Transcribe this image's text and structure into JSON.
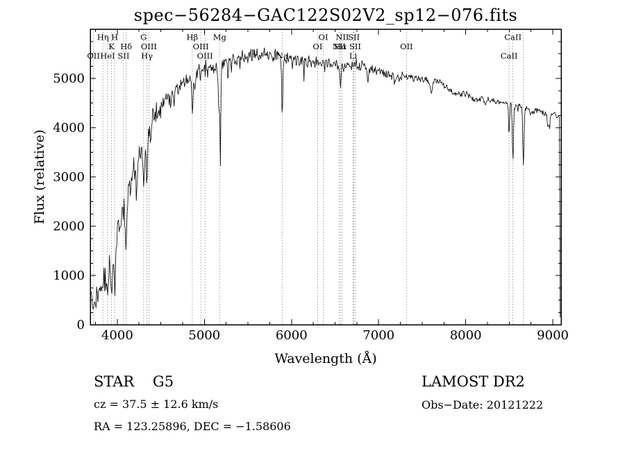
{
  "annotations": {
    "class_label": "STAR    G5",
    "survey": "LAMOST DR2",
    "cz": "cz = 37.5 ± 12.6 km/s",
    "obs_date": "Obs−Date: 20121222",
    "coords": "RA = 123.25896, DEC = −1.58606"
  },
  "chart_data": {
    "type": "line",
    "title": "spec−56284−GAC122S02V2_sp12−076.fits",
    "xlabel": "Wavelength (Å)",
    "ylabel": "Flux (relative)",
    "xlim": [
      3690,
      9095
    ],
    "ylim": [
      0,
      6000
    ],
    "xticks": [
      4000,
      5000,
      6000,
      7000,
      8000,
      9000
    ],
    "yticks": [
      0,
      1000,
      2000,
      3000,
      4000,
      5000
    ],
    "minor_step_x": 250,
    "minor_step_y": 250,
    "grid": false,
    "legend": "none",
    "line_color": "#000000",
    "marker_line_color": "#8a8a8a",
    "wl_start": 3700,
    "wl_end": 9085,
    "continuum": [
      [
        3700,
        520
      ],
      [
        3740,
        480
      ],
      [
        3780,
        700
      ],
      [
        3820,
        850
      ],
      [
        3860,
        950
      ],
      [
        3900,
        1150
      ],
      [
        3940,
        1350
      ],
      [
        3980,
        1600
      ],
      [
        4020,
        1900
      ],
      [
        4060,
        2150
      ],
      [
        4100,
        2500
      ],
      [
        4150,
        2900
      ],
      [
        4200,
        3200
      ],
      [
        4250,
        3450
      ],
      [
        4300,
        3700
      ],
      [
        4350,
        3950
      ],
      [
        4400,
        4150
      ],
      [
        4450,
        4300
      ],
      [
        4500,
        4420
      ],
      [
        4550,
        4520
      ],
      [
        4600,
        4620
      ],
      [
        4650,
        4700
      ],
      [
        4700,
        4780
      ],
      [
        4750,
        4850
      ],
      [
        4800,
        4920
      ],
      [
        4850,
        4970
      ],
      [
        4900,
        5050
      ],
      [
        4950,
        5120
      ],
      [
        5000,
        5170
      ],
      [
        5100,
        5230
      ],
      [
        5200,
        5270
      ],
      [
        5300,
        5310
      ],
      [
        5400,
        5370
      ],
      [
        5500,
        5420
      ],
      [
        5600,
        5450
      ],
      [
        5700,
        5460
      ],
      [
        5800,
        5460
      ],
      [
        5900,
        5420
      ],
      [
        6000,
        5400
      ],
      [
        6100,
        5380
      ],
      [
        6200,
        5360
      ],
      [
        6300,
        5330
      ],
      [
        6400,
        5310
      ],
      [
        6500,
        5290
      ],
      [
        6600,
        5270
      ],
      [
        6700,
        5300
      ],
      [
        6800,
        5260
      ],
      [
        6900,
        5210
      ],
      [
        7000,
        5150
      ],
      [
        7100,
        5100
      ],
      [
        7200,
        5060
      ],
      [
        7300,
        5040
      ],
      [
        7400,
        5020
      ],
      [
        7500,
        5000
      ],
      [
        7600,
        4960
      ],
      [
        7700,
        4920
      ],
      [
        7750,
        4850
      ],
      [
        7800,
        4780
      ],
      [
        7850,
        4720
      ],
      [
        7900,
        4680
      ],
      [
        8000,
        4700
      ],
      [
        8050,
        4650
      ],
      [
        8100,
        4560
      ],
      [
        8200,
        4600
      ],
      [
        8300,
        4550
      ],
      [
        8400,
        4520
      ],
      [
        8500,
        4500
      ],
      [
        8600,
        4460
      ],
      [
        8700,
        4380
      ],
      [
        8750,
        4310
      ],
      [
        8800,
        4330
      ],
      [
        8850,
        4350
      ],
      [
        8900,
        4290
      ],
      [
        8950,
        4250
      ],
      [
        9000,
        4300
      ],
      [
        9030,
        4270
      ],
      [
        9060,
        4220
      ],
      [
        9078,
        4180
      ],
      [
        9085,
        150
      ]
    ],
    "absorption_lines": [
      {
        "center": 3750,
        "depth": 250,
        "width": 8
      },
      {
        "center": 3820,
        "depth": 200,
        "width": 6
      },
      {
        "center": 3889,
        "depth": 300,
        "width": 7
      },
      {
        "center": 3934,
        "depth": 700,
        "width": 9
      },
      {
        "center": 3969,
        "depth": 750,
        "width": 9
      },
      {
        "center": 4102,
        "depth": 850,
        "width": 8
      },
      {
        "center": 4227,
        "depth": 520,
        "width": 6
      },
      {
        "center": 4302,
        "depth": 620,
        "width": 13
      },
      {
        "center": 4340,
        "depth": 950,
        "width": 8
      },
      {
        "center": 4383,
        "depth": 420,
        "width": 6
      },
      {
        "center": 4861,
        "depth": 650,
        "width": 8
      },
      {
        "center": 5172,
        "depth": 1000,
        "width": 10
      },
      {
        "center": 5185,
        "depth": 1600,
        "width": 4
      },
      {
        "center": 5270,
        "depth": 380,
        "width": 6
      },
      {
        "center": 5893,
        "depth": 1150,
        "width": 6
      },
      {
        "center": 6563,
        "depth": 480,
        "width": 7
      },
      {
        "center": 6875,
        "depth": 230,
        "width": 12
      },
      {
        "center": 7186,
        "depth": 150,
        "width": 10
      },
      {
        "center": 7605,
        "depth": 260,
        "width": 13
      },
      {
        "center": 8227,
        "depth": 180,
        "width": 10
      },
      {
        "center": 8498,
        "depth": 620,
        "width": 6
      },
      {
        "center": 8542,
        "depth": 1150,
        "width": 7
      },
      {
        "center": 8662,
        "depth": 1150,
        "width": 7
      },
      {
        "center": 8950,
        "depth": 250,
        "width": 12
      }
    ],
    "noise": {
      "seed": 20121222,
      "step": 7,
      "spike_prob": 0.025,
      "spike_scale": 2.2,
      "amplitude": [
        [
          3700,
          270
        ],
        [
          4100,
          260
        ],
        [
          4400,
          220
        ],
        [
          4700,
          180
        ],
        [
          5000,
          160
        ],
        [
          5300,
          150
        ],
        [
          5600,
          140
        ],
        [
          5900,
          130
        ],
        [
          6200,
          120
        ],
        [
          6500,
          115
        ],
        [
          6800,
          105
        ],
        [
          7100,
          85
        ],
        [
          7400,
          70
        ],
        [
          7700,
          60
        ],
        [
          8000,
          55
        ],
        [
          8300,
          55
        ],
        [
          8600,
          60
        ],
        [
          9000,
          55
        ]
      ]
    },
    "markers": [
      {
        "label": "Hη",
        "wl": 3835,
        "row": 1
      },
      {
        "label": "H",
        "wl": 3970,
        "row": 1
      },
      {
        "label": "K",
        "wl": 3934,
        "row": 2
      },
      {
        "label": "Hδ",
        "wl": 4102,
        "row": 2
      },
      {
        "label": "OII",
        "wl": 3727,
        "row": 3
      },
      {
        "label": "HeI",
        "wl": 3889,
        "row": 3
      },
      {
        "label": "SII",
        "wl": 4072,
        "row": 3
      },
      {
        "label": "G",
        "wl": 4302,
        "row": 1
      },
      {
        "label": "OIII",
        "wl": 4363,
        "row": 2
      },
      {
        "label": "Hγ",
        "wl": 4340,
        "row": 3
      },
      {
        "label": "Hβ",
        "wl": 4861,
        "row": 1
      },
      {
        "label": "OIII",
        "wl": 4959,
        "row": 2
      },
      {
        "label": "OIII",
        "wl": 5007,
        "row": 3
      },
      {
        "label": "Mg",
        "wl": 5175,
        "row": 1
      },
      {
        "label": "Na",
        "wl": 5893,
        "row": 3
      },
      {
        "label": "OI",
        "wl": 6365,
        "row": 1
      },
      {
        "label": "OI",
        "wl": 6300,
        "row": 2
      },
      {
        "label": "NII",
        "wl": 6548,
        "row": 2
      },
      {
        "label": "Hα",
        "wl": 6563,
        "row": 2
      },
      {
        "label": "NII",
        "wl": 6583,
        "row": 1
      },
      {
        "label": "SII",
        "wl": 6716,
        "row": 1
      },
      {
        "label": "SII",
        "wl": 6731,
        "row": 2
      },
      {
        "label": "Li",
        "wl": 6708,
        "row": 3
      },
      {
        "label": "OII",
        "wl": 7320,
        "row": 2
      },
      {
        "label": "CaII",
        "wl": 8542,
        "row": 1
      },
      {
        "label": "CaII",
        "wl": 8498,
        "row": 3
      }
    ],
    "extra_lines": [
      8662
    ]
  }
}
